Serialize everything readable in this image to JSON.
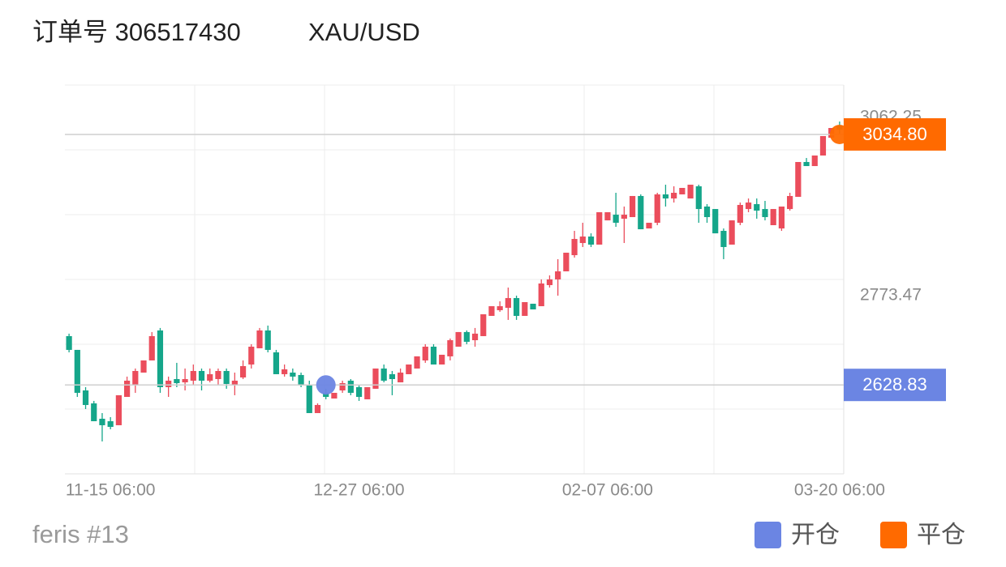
{
  "header": {
    "title": "订单号 306517430",
    "symbol": "XAU/USD"
  },
  "chart_data": {
    "type": "candlestick",
    "categories": [
      null,
      null,
      null,
      null,
      null,
      "11-15 06:00",
      null,
      null,
      null,
      null,
      null,
      null,
      null,
      null,
      null,
      null,
      null,
      null,
      null,
      null,
      null,
      null,
      null,
      null,
      null,
      null,
      null,
      null,
      null,
      null,
      null,
      null,
      null,
      null,
      null,
      "12-27 06:00",
      null,
      null,
      null,
      null,
      null,
      null,
      null,
      null,
      null,
      null,
      null,
      null,
      null,
      null,
      null,
      null,
      null,
      null,
      null,
      null,
      null,
      null,
      null,
      null,
      null,
      null,
      null,
      null,
      null,
      "02-07 06:00",
      null,
      null,
      null,
      null,
      null,
      null,
      null,
      null,
      null,
      null,
      null,
      null,
      null,
      null,
      null,
      null,
      null,
      null,
      null,
      null,
      null,
      null,
      null,
      null,
      null,
      null,
      null,
      "03-20 06:00"
    ],
    "open": [
      2707.9,
      2685.6,
      2619.9,
      2598.9,
      2574.0,
      2570.0,
      2563.5,
      2609.4,
      2629.1,
      2648.8,
      2668.5,
      2717.1,
      2625.2,
      2638.3,
      2633.0,
      2635.7,
      2651.4,
      2635.7,
      2638.3,
      2651.4,
      2629.1,
      2640.9,
      2661.9,
      2688.2,
      2717.1,
      2681.6,
      2646.2,
      2648.8,
      2644.9,
      2629.1,
      2583.2,
      2616.0,
      2606.8,
      2619.9,
      2635.7,
      2625.2,
      2605.5,
      2622.6,
      2655.4,
      2646.2,
      2633.0,
      2646.2,
      2655.4,
      2668.5,
      2690.8,
      2661.9,
      2675.1,
      2690.8,
      2714.5,
      2701.3,
      2707.9,
      2740.7,
      2749.9,
      2753.8,
      2769.6,
      2740.7,
      2760.4,
      2756.4,
      2790.6,
      2799.8,
      2812.9,
      2839.1,
      2858.8,
      2869.3,
      2856.2,
      2895.5,
      2904.7,
      2898.2,
      2900.8,
      2935.0,
      2882.4,
      2891.6,
      2937.6,
      2931.0,
      2937.6,
      2931.0,
      2950.7,
      2917.9,
      2913.9,
      2878.5,
      2856.2,
      2891.6,
      2913.9,
      2921.8,
      2913.9,
      2887.7,
      2882.4,
      2913.9,
      2933.6,
      2990.1,
      2983.5,
      3000.6,
      3029.4,
      3049.1
    ],
    "high": [
      2711.9,
      2685.6,
      2625.2,
      2602.9,
      2583.2,
      2576.6,
      2612.1,
      2642.3,
      2655.4,
      2668.5,
      2714.5,
      2721.1,
      2642.3,
      2664.6,
      2655.4,
      2661.9,
      2655.4,
      2655.4,
      2655.4,
      2655.4,
      2648.8,
      2668.5,
      2694.8,
      2721.1,
      2725.0,
      2685.6,
      2661.9,
      2655.4,
      2648.8,
      2635.7,
      2598.9,
      2622.6,
      2616.0,
      2635.7,
      2638.3,
      2629.1,
      2625.2,
      2655.4,
      2661.9,
      2651.4,
      2655.4,
      2661.9,
      2675.1,
      2694.8,
      2694.8,
      2677.7,
      2704.0,
      2714.5,
      2717.1,
      2721.1,
      2743.3,
      2756.4,
      2764.3,
      2786.6,
      2773.5,
      2763.0,
      2760.4,
      2799.8,
      2806.3,
      2832.6,
      2843.1,
      2878.5,
      2891.6,
      2874.5,
      2908.7,
      2908.7,
      2940.2,
      2917.9,
      2935.0,
      2937.6,
      2891.6,
      2940.2,
      2953.3,
      2950.7,
      2948.1,
      2953.3,
      2953.3,
      2921.8,
      2913.9,
      2882.4,
      2895.5,
      2924.4,
      2931.0,
      2931.0,
      2927.1,
      2913.9,
      2917.9,
      2940.2,
      2990.1,
      2996.6,
      3000.6,
      3032.1,
      3045.2,
      3055.7
    ],
    "low": [
      2681.6,
      2609.4,
      2589.7,
      2570.0,
      2537.2,
      2556.9,
      2563.5,
      2609.4,
      2616.0,
      2648.8,
      2668.5,
      2616.0,
      2609.4,
      2625.2,
      2619.9,
      2629.1,
      2619.9,
      2633.0,
      2629.1,
      2622.6,
      2612.1,
      2638.3,
      2655.4,
      2688.2,
      2681.6,
      2646.2,
      2642.3,
      2635.7,
      2625.2,
      2583.2,
      2583.2,
      2605.5,
      2606.8,
      2616.0,
      2612.1,
      2602.9,
      2605.5,
      2622.6,
      2633.0,
      2612.1,
      2633.0,
      2646.2,
      2655.4,
      2664.6,
      2661.9,
      2661.9,
      2668.5,
      2690.8,
      2694.8,
      2690.8,
      2707.9,
      2740.7,
      2747.3,
      2734.2,
      2734.2,
      2740.7,
      2751.2,
      2756.4,
      2786.6,
      2773.5,
      2812.9,
      2835.2,
      2852.3,
      2852.3,
      2856.2,
      2895.5,
      2885.0,
      2858.8,
      2900.8,
      2881.1,
      2882.4,
      2887.7,
      2917.9,
      2924.4,
      2937.6,
      2931.0,
      2891.6,
      2891.6,
      2874.5,
      2832.6,
      2856.2,
      2887.7,
      2908.7,
      2898.2,
      2895.5,
      2887.7,
      2878.5,
      2911.3,
      2933.6,
      2983.5,
      2983.5,
      3000.6,
      3029.4,
      3036.0
    ],
    "close": [
      2685.6,
      2616.0,
      2596.3,
      2570.0,
      2563.5,
      2560.8,
      2612.1,
      2635.7,
      2651.4,
      2668.5,
      2707.9,
      2625.2,
      2635.7,
      2631.7,
      2638.3,
      2651.4,
      2635.7,
      2646.2,
      2651.4,
      2630.4,
      2635.7,
      2659.3,
      2690.8,
      2717.1,
      2685.6,
      2646.2,
      2654.1,
      2642.3,
      2629.1,
      2583.2,
      2596.3,
      2609.4,
      2616.0,
      2631.7,
      2616.0,
      2609.4,
      2625.2,
      2655.4,
      2635.7,
      2638.3,
      2648.8,
      2661.9,
      2675.1,
      2690.8,
      2661.9,
      2677.7,
      2701.3,
      2714.5,
      2698.7,
      2711.9,
      2743.3,
      2756.4,
      2756.4,
      2769.6,
      2740.7,
      2763.0,
      2751.2,
      2793.2,
      2799.8,
      2812.9,
      2843.1,
      2865.4,
      2869.3,
      2856.2,
      2908.7,
      2908.7,
      2891.6,
      2904.7,
      2935.0,
      2881.1,
      2891.6,
      2937.6,
      2931.0,
      2940.2,
      2948.1,
      2953.3,
      2913.9,
      2900.8,
      2874.5,
      2852.3,
      2895.5,
      2920.5,
      2924.4,
      2911.3,
      2900.8,
      2913.9,
      2917.9,
      2935.0,
      2990.1,
      2983.5,
      3000.6,
      3032.1,
      3045.2,
      3042.6
    ],
    "up_color": "#eb4d5c",
    "down_color": "#15a68a",
    "ylim": [
      2484.7,
      3114.8
    ],
    "yticks": [
      3062.25,
      2773.47
    ],
    "markers": [
      {
        "name": "开仓",
        "color": "#6b85e3",
        "index": 31,
        "value": 2628.83
      },
      {
        "name": "平仓",
        "color": "#ff6a00",
        "index": 93,
        "value": 3034.8,
        "value_label": "3034.80"
      }
    ]
  },
  "footer": {
    "account": "feris #13"
  }
}
